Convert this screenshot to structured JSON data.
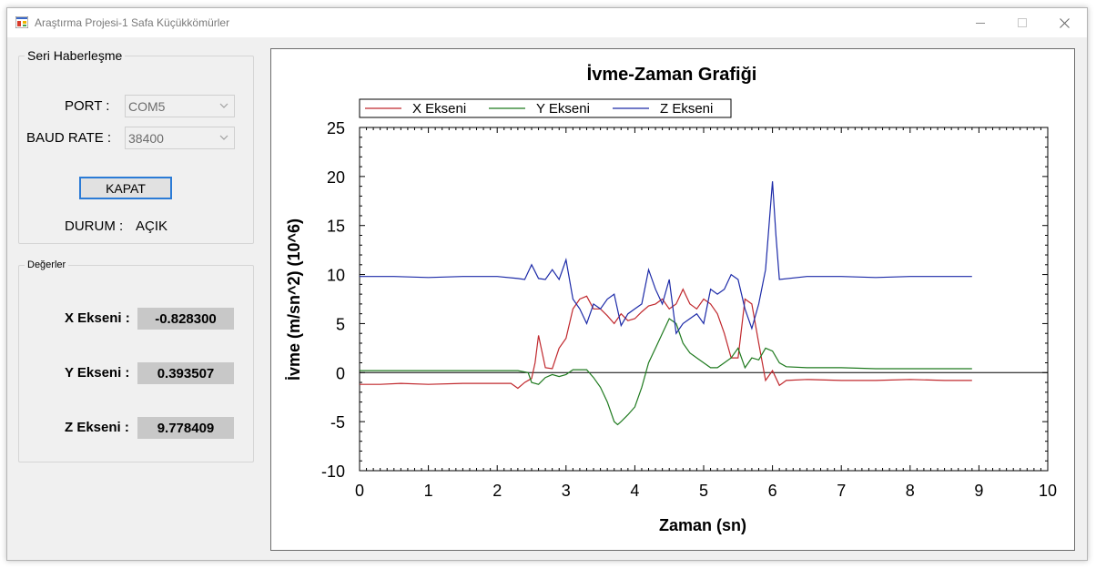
{
  "window": {
    "title": "Araştırma Projesi-1 Safa Küçükkömürler",
    "icon": "app-icon",
    "controls": [
      "minimize-icon",
      "maximize-icon",
      "close-icon"
    ]
  },
  "serial": {
    "group_title": "Seri Haberleşme",
    "port_label": "PORT :",
    "port_value": "COM5",
    "baud_label": "BAUD RATE :",
    "baud_value": "38400",
    "button_label": "KAPAT",
    "status_label": "DURUM :",
    "status_value": "AÇIK"
  },
  "values": {
    "group_title": "Değerler",
    "x_label": "X Ekseni :",
    "x_value": "-0.828300",
    "y_label": "Y Ekseni :",
    "y_value": "0.393507",
    "z_label": "Z Ekseni :",
    "z_value": "9.778409"
  },
  "chart_data": {
    "type": "line",
    "title": "İvme-Zaman Grafiği",
    "xlabel": "Zaman (sn)",
    "ylabel": "İvme (m/sn^2) (10^6)",
    "xlim": [
      0,
      10
    ],
    "ylim": [
      -10,
      25
    ],
    "xticks": [
      "0",
      "1",
      "2",
      "3",
      "4",
      "5",
      "6",
      "7",
      "8",
      "9",
      "10"
    ],
    "yticks": [
      "25",
      "20",
      "15",
      "10",
      "5",
      "0",
      "-5",
      "-10"
    ],
    "legend_position": "top-left",
    "grid": false,
    "series": [
      {
        "name": "X Ekseni",
        "color": "#c0282d",
        "x": [
          0,
          0.3,
          0.6,
          1.0,
          1.5,
          2.0,
          2.2,
          2.3,
          2.4,
          2.5,
          2.55,
          2.6,
          2.7,
          2.8,
          2.9,
          3.0,
          3.1,
          3.2,
          3.3,
          3.4,
          3.5,
          3.6,
          3.7,
          3.8,
          3.9,
          4.0,
          4.1,
          4.2,
          4.3,
          4.4,
          4.5,
          4.6,
          4.7,
          4.8,
          4.9,
          5.0,
          5.1,
          5.2,
          5.3,
          5.4,
          5.5,
          5.6,
          5.7,
          5.8,
          5.9,
          6.0,
          6.1,
          6.2,
          6.5,
          7.0,
          7.5,
          8.0,
          8.5,
          8.9
        ],
        "y": [
          -1.2,
          -1.2,
          -1.1,
          -1.2,
          -1.1,
          -1.1,
          -1.1,
          -1.6,
          -1.0,
          -0.6,
          1.0,
          3.8,
          0.5,
          0.4,
          2.5,
          3.5,
          6.5,
          7.5,
          7.8,
          6.5,
          6.5,
          5.8,
          5.0,
          6.0,
          5.3,
          5.5,
          6.2,
          6.8,
          7.0,
          7.5,
          6.5,
          7.0,
          8.5,
          7.0,
          6.5,
          7.5,
          7.0,
          6.0,
          4.0,
          1.5,
          1.5,
          7.5,
          7.0,
          3.0,
          -0.8,
          0.2,
          -1.3,
          -0.8,
          -0.7,
          -0.8,
          -0.8,
          -0.7,
          -0.8,
          -0.8
        ]
      },
      {
        "name": "Y Ekseni",
        "color": "#1f7a1f",
        "x": [
          0,
          0.5,
          1.0,
          1.5,
          2.0,
          2.3,
          2.45,
          2.5,
          2.6,
          2.7,
          2.8,
          2.9,
          3.0,
          3.1,
          3.2,
          3.3,
          3.4,
          3.5,
          3.6,
          3.7,
          3.75,
          3.8,
          3.9,
          4.0,
          4.1,
          4.2,
          4.3,
          4.4,
          4.5,
          4.6,
          4.7,
          4.8,
          4.9,
          5.0,
          5.1,
          5.2,
          5.3,
          5.4,
          5.5,
          5.6,
          5.7,
          5.8,
          5.9,
          6.0,
          6.1,
          6.2,
          6.5,
          7.0,
          7.5,
          8.0,
          8.5,
          8.9
        ],
        "y": [
          0.2,
          0.2,
          0.2,
          0.2,
          0.2,
          0.2,
          0.0,
          -1.0,
          -1.2,
          -0.5,
          -0.2,
          -0.4,
          -0.2,
          0.3,
          0.3,
          0.3,
          -0.5,
          -1.5,
          -3.0,
          -5.0,
          -5.3,
          -5.0,
          -4.3,
          -3.5,
          -1.5,
          1.0,
          2.5,
          4.0,
          5.5,
          5.0,
          3.0,
          2.0,
          1.5,
          1.0,
          0.5,
          0.5,
          1.0,
          1.5,
          2.5,
          0.5,
          1.5,
          1.3,
          2.5,
          2.2,
          1.0,
          0.6,
          0.5,
          0.5,
          0.4,
          0.4,
          0.4,
          0.4
        ]
      },
      {
        "name": "Z Ekseni",
        "color": "#1c2aa8",
        "x": [
          0,
          0.5,
          1.0,
          1.5,
          2.0,
          2.3,
          2.4,
          2.5,
          2.6,
          2.7,
          2.8,
          2.9,
          3.0,
          3.1,
          3.2,
          3.3,
          3.4,
          3.5,
          3.6,
          3.7,
          3.8,
          3.9,
          4.0,
          4.1,
          4.2,
          4.3,
          4.4,
          4.5,
          4.6,
          4.7,
          4.8,
          4.9,
          5.0,
          5.1,
          5.2,
          5.3,
          5.4,
          5.5,
          5.6,
          5.7,
          5.8,
          5.9,
          5.95,
          6.0,
          6.05,
          6.1,
          6.5,
          7.0,
          7.5,
          8.0,
          8.5,
          8.9
        ],
        "y": [
          9.8,
          9.8,
          9.7,
          9.8,
          9.8,
          9.6,
          9.5,
          11.0,
          9.6,
          9.5,
          10.5,
          9.5,
          11.5,
          7.5,
          6.5,
          5.0,
          7.0,
          6.5,
          7.5,
          8.0,
          4.8,
          6.0,
          6.5,
          7.0,
          10.5,
          8.5,
          7.0,
          9.5,
          4.0,
          5.0,
          5.5,
          6.0,
          5.0,
          8.5,
          8.0,
          8.5,
          10.0,
          9.5,
          6.5,
          4.5,
          7.0,
          10.5,
          15.0,
          19.5,
          14.0,
          9.5,
          9.8,
          9.8,
          9.7,
          9.8,
          9.8,
          9.8
        ]
      }
    ]
  }
}
